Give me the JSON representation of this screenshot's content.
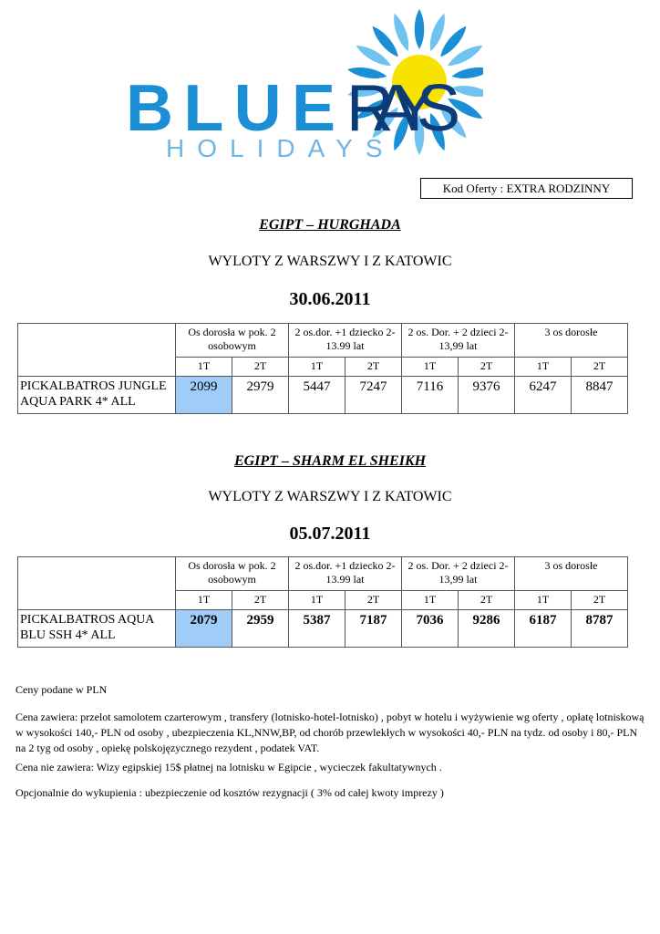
{
  "logo": {
    "line1": "BLUE RAYS",
    "line2": "HOLIDAYS",
    "colors": {
      "blue": "#1a8fd6",
      "dark": "#0d3b78",
      "light": "#6fb6e6",
      "sun": "#f7e200"
    }
  },
  "offer_code": "Kod Oferty : EXTRA RODZINNY",
  "sections": [
    {
      "destination": "EGIPT – HURGHADA",
      "flights": "WYLOTY  Z WARSZWY I Z KATOWIC",
      "date": "30.06.2011",
      "groups": [
        "Os dorosła w pok. 2 osobowym",
        "2 os.dor. +1 dziecko 2-13.99 lat",
        "2 os. Dor. + 2 dzieci 2-13,99 lat",
        "3 os dorosłe"
      ],
      "subheaders": [
        "1T",
        "2T",
        "1T",
        "2T",
        "1T",
        "2T",
        "1T",
        "2T"
      ],
      "hotel": "PICKALBATROS JUNGLE AQUA PARK 4* ALL",
      "prices": [
        "2099",
        "2979",
        "5447",
        "7247",
        "7116",
        "9376",
        "6247",
        "8847"
      ]
    },
    {
      "destination": "EGIPT – SHARM EL SHEIKH",
      "flights": "WYLOTY  Z WARSZWY I Z KATOWIC",
      "date": "05.07.2011",
      "groups": [
        "Os dorosła w pok. 2 osobowym",
        "2 os.dor. +1 dziecko 2-13.99 lat",
        "2 os. Dor. + 2 dzieci 2-13,99 lat",
        "3 os dorosłe"
      ],
      "subheaders": [
        "1T",
        "2T",
        "1T",
        "2T",
        "1T",
        "2T",
        "1T",
        "2T"
      ],
      "hotel": "PICKALBATROS AQUA BLU SSH 4* ALL",
      "prices": [
        "2079",
        "2959",
        "5387",
        "7187",
        "7036",
        "9286",
        "6187",
        "8787"
      ]
    }
  ],
  "notes": [
    "Ceny podane w PLN",
    "Cena zawiera: przelot samolotem czarterowym , transfery (lotnisko-hotel-lotnisko) , pobyt w hotelu i wyżywienie wg oferty , opłatę lotniskową w wysokości 140,- PLN od osoby ,  ubezpieczenia KL,NNW,BP, od chorób przewlekłych w wysokości 40,- PLN na tydz. od osoby i 80,- PLN na 2 tyg od osoby , opiekę polskojęzycznego rezydent , podatek VAT.",
    "Cena nie zawiera: Wizy egipskiej 15$ płatnej na lotnisku w Egipcie , wycieczek fakultatywnych .",
    "Opcjonalnie do wykupienia : ubezpieczenie od kosztów rezygnacji ( 3% od całej kwoty imprezy )"
  ]
}
